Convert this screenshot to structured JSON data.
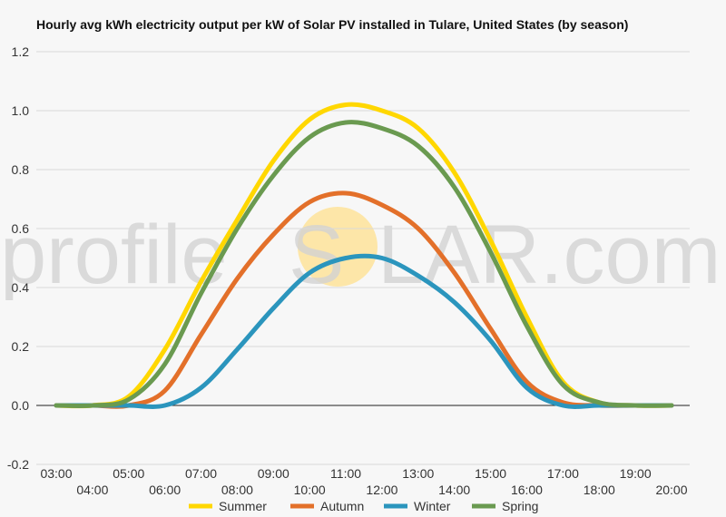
{
  "chart_data": {
    "type": "line",
    "title": "Hourly avg kWh electricity output per kW of Solar PV installed in Tulare, United States (by season)",
    "xlabel": "",
    "ylabel": "",
    "ylim": [
      -0.2,
      1.2
    ],
    "yticks": [
      "-0.2",
      "0.0",
      "0.2",
      "0.4",
      "0.6",
      "0.8",
      "1.0",
      "1.2"
    ],
    "ytick_values": [
      -0.2,
      0,
      0.2,
      0.4,
      0.6,
      0.8,
      1.0,
      1.2
    ],
    "x": [
      "03:00",
      "04:00",
      "05:00",
      "06:00",
      "07:00",
      "08:00",
      "09:00",
      "10:00",
      "11:00",
      "12:00",
      "13:00",
      "14:00",
      "15:00",
      "16:00",
      "17:00",
      "18:00",
      "19:00",
      "20:00"
    ],
    "grid": true,
    "legend": "bottom",
    "series": [
      {
        "name": "Summer",
        "color": "#ffd700",
        "values": [
          0,
          0,
          0.03,
          0.19,
          0.42,
          0.63,
          0.83,
          0.97,
          1.02,
          1.0,
          0.94,
          0.79,
          0.56,
          0.3,
          0.08,
          0.01,
          0,
          0
        ]
      },
      {
        "name": "Autumn",
        "color": "#e3702a",
        "values": [
          0,
          0,
          0,
          0.05,
          0.24,
          0.43,
          0.58,
          0.69,
          0.72,
          0.68,
          0.6,
          0.45,
          0.26,
          0.08,
          0.01,
          0,
          0,
          0
        ]
      },
      {
        "name": "Winter",
        "color": "#2b95bd",
        "values": [
          0,
          0,
          0,
          0,
          0.06,
          0.19,
          0.33,
          0.45,
          0.5,
          0.5,
          0.44,
          0.35,
          0.22,
          0.06,
          0,
          0,
          0,
          0
        ]
      },
      {
        "name": "Spring",
        "color": "#6a9a50",
        "values": [
          0,
          0,
          0.02,
          0.14,
          0.38,
          0.6,
          0.78,
          0.91,
          0.96,
          0.94,
          0.88,
          0.74,
          0.52,
          0.27,
          0.07,
          0.01,
          0,
          0
        ]
      }
    ]
  },
  "watermark": {
    "left": "profile",
    "right": "LAR.com",
    "sun_color": "#fde6a8"
  }
}
